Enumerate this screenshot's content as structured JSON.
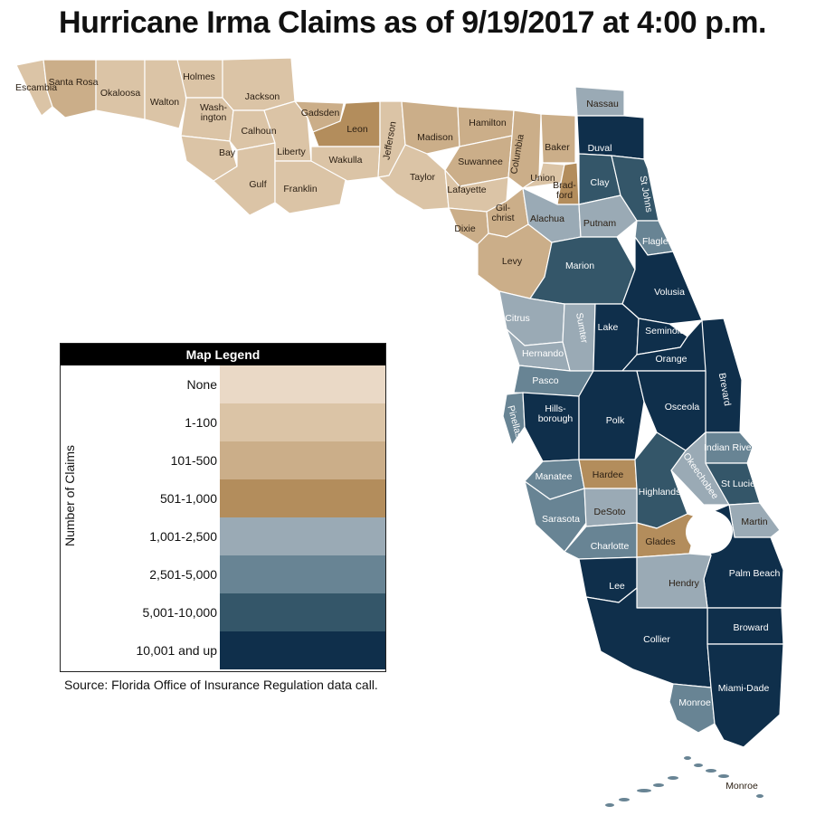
{
  "title": "Hurricane Irma Claims as of 9/19/2017 at 4:00 p.m.",
  "source": "Source: Florida Office of Insurance Regulation data call.",
  "legend": {
    "title": "Map Legend",
    "axis_label": "Number of Claims",
    "items": [
      {
        "label": "None",
        "color": "#ead9c6"
      },
      {
        "label": "1-100",
        "color": "#dbc4a6"
      },
      {
        "label": "101-500",
        "color": "#cbae89"
      },
      {
        "label": "501-1,000",
        "color": "#b38d5c"
      },
      {
        "label": "1,001-2,500",
        "color": "#9aaab5"
      },
      {
        "label": "2,501-5,000",
        "color": "#688494"
      },
      {
        "label": "5,001-10,000",
        "color": "#345669"
      },
      {
        "label": "10,001 and up",
        "color": "#0f2f4b"
      }
    ]
  },
  "counties": [
    {
      "name": "Escambia",
      "cat": 1
    },
    {
      "name": "Santa Rosa",
      "cat": 2
    },
    {
      "name": "Okaloosa",
      "cat": 1
    },
    {
      "name": "Walton",
      "cat": 1
    },
    {
      "name": "Holmes",
      "cat": 1
    },
    {
      "name": "Wash-ington",
      "cat": 1
    },
    {
      "name": "Jackson",
      "cat": 1
    },
    {
      "name": "Bay",
      "cat": 1
    },
    {
      "name": "Calhoun",
      "cat": 1
    },
    {
      "name": "Gulf",
      "cat": 1
    },
    {
      "name": "Liberty",
      "cat": 1
    },
    {
      "name": "Franklin",
      "cat": 1
    },
    {
      "name": "Gadsden",
      "cat": 2
    },
    {
      "name": "Leon",
      "cat": 3
    },
    {
      "name": "Wakulla",
      "cat": 1
    },
    {
      "name": "Jefferson",
      "cat": 1
    },
    {
      "name": "Madison",
      "cat": 2
    },
    {
      "name": "Taylor",
      "cat": 1
    },
    {
      "name": "Hamilton",
      "cat": 2
    },
    {
      "name": "Suwannee",
      "cat": 2
    },
    {
      "name": "Lafayette",
      "cat": 1
    },
    {
      "name": "Dixie",
      "cat": 2
    },
    {
      "name": "Columbia",
      "cat": 2
    },
    {
      "name": "Baker",
      "cat": 2
    },
    {
      "name": "Union",
      "cat": 1
    },
    {
      "name": "Brad-ford",
      "cat": 3
    },
    {
      "name": "Gil-christ",
      "cat": 2
    },
    {
      "name": "Levy",
      "cat": 2
    },
    {
      "name": "Alachua",
      "cat": 4
    },
    {
      "name": "Nassau",
      "cat": 4
    },
    {
      "name": "Duval",
      "cat": 7
    },
    {
      "name": "Clay",
      "cat": 6
    },
    {
      "name": "St Johns",
      "cat": 6
    },
    {
      "name": "Putnam",
      "cat": 4
    },
    {
      "name": "Flagler",
      "cat": 5
    },
    {
      "name": "Marion",
      "cat": 6
    },
    {
      "name": "Volusia",
      "cat": 7
    },
    {
      "name": "Citrus",
      "cat": 4
    },
    {
      "name": "Sumter",
      "cat": 4
    },
    {
      "name": "Lake",
      "cat": 7
    },
    {
      "name": "Seminole",
      "cat": 7
    },
    {
      "name": "Hernando",
      "cat": 4
    },
    {
      "name": "Orange",
      "cat": 7
    },
    {
      "name": "Brevard",
      "cat": 7
    },
    {
      "name": "Pasco",
      "cat": 5
    },
    {
      "name": "Pinellas",
      "cat": 5
    },
    {
      "name": "Hills-borough",
      "cat": 7
    },
    {
      "name": "Polk",
      "cat": 7
    },
    {
      "name": "Osceola",
      "cat": 7
    },
    {
      "name": "Indian River",
      "cat": 5
    },
    {
      "name": "Okeechobee",
      "cat": 4
    },
    {
      "name": "St Lucie",
      "cat": 6
    },
    {
      "name": "Manatee",
      "cat": 5
    },
    {
      "name": "Hardee",
      "cat": 3
    },
    {
      "name": "Highlands",
      "cat": 6
    },
    {
      "name": "Sarasota",
      "cat": 5
    },
    {
      "name": "DeSoto",
      "cat": 4
    },
    {
      "name": "Martin",
      "cat": 4
    },
    {
      "name": "Charlotte",
      "cat": 5
    },
    {
      "name": "Glades",
      "cat": 3
    },
    {
      "name": "Palm Beach",
      "cat": 7
    },
    {
      "name": "Lee",
      "cat": 7
    },
    {
      "name": "Hendry",
      "cat": 4
    },
    {
      "name": "Broward",
      "cat": 7
    },
    {
      "name": "Collier",
      "cat": 7
    },
    {
      "name": "Monroe",
      "cat": 5
    },
    {
      "name": "Miami-Dade",
      "cat": 7
    },
    {
      "name": "Monroe",
      "cat": 5
    }
  ]
}
